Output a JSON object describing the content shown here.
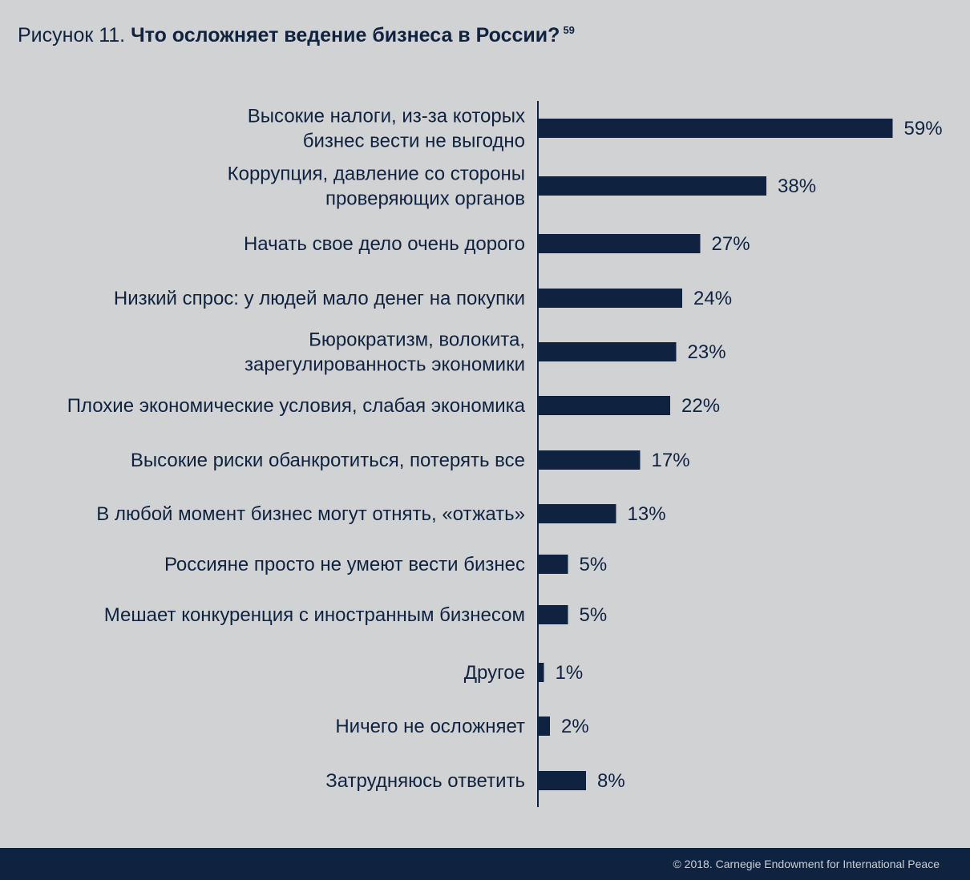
{
  "header": {
    "figure_label": "Рисунок 11.",
    "title": "Что осложняет ведение бизнеса в России?",
    "footnote": "59"
  },
  "footer": {
    "copyright": "© 2018. Carnegie Endowment for International Peace"
  },
  "colors": {
    "background": "#d1d2d4",
    "bar": "#0f2340",
    "text": "#0f2340",
    "footer_bg": "#0f2340"
  },
  "chart_data": {
    "type": "bar",
    "orientation": "horizontal",
    "title": "Что осложняет ведение бизнеса в России?",
    "value_suffix": "%",
    "categories": [
      [
        "Высокие налоги, из-за которых",
        "бизнес вести не выгодно"
      ],
      [
        "Коррупция, давление со стороны",
        "проверяющих органов"
      ],
      [
        "Начать свое дело очень дорого"
      ],
      [
        "Низкий спрос: у людей мало денег на покупки"
      ],
      [
        "Бюрократизм, волокита,",
        "зарегулированность экономики"
      ],
      [
        "Плохие экономические условия, слабая экономика"
      ],
      [
        "Высокие риски обанкротиться, потерять все"
      ],
      [
        "В любой момент бизнес могут отнять, «отжать»"
      ],
      [
        "Россияне просто не умеют вести бизнес"
      ],
      [
        "Мешает конкуренция с иностранным бизнесом"
      ],
      [
        "Другое"
      ],
      [
        "Ничего не осложняет"
      ],
      [
        "Затрудняюсь ответить"
      ]
    ],
    "values": [
      59,
      38,
      27,
      24,
      23,
      22,
      17,
      13,
      5,
      5,
      1,
      2,
      8
    ],
    "value_labels": [
      "59%",
      "38%",
      "27%",
      "24%",
      "23%",
      "22%",
      "17%",
      "13%",
      "5%",
      "5%",
      "1%",
      "2%",
      "8%"
    ],
    "grid": false,
    "legend": "none"
  }
}
